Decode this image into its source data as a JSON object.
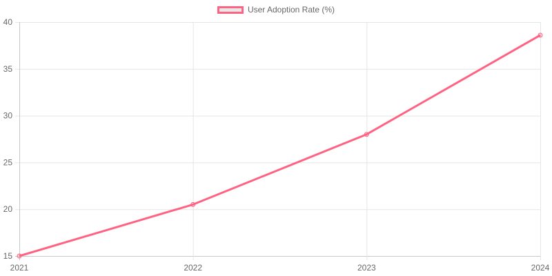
{
  "chart_data": {
    "type": "line",
    "title": "",
    "xlabel": "",
    "ylabel": "",
    "categories": [
      "2021",
      "2022",
      "2023",
      "2024"
    ],
    "series": [
      {
        "name": "User Adoption Rate (%)",
        "values": [
          15.0,
          20.5,
          28.0,
          38.6
        ],
        "color": "#ff6384"
      }
    ],
    "ylim": [
      15,
      40
    ],
    "yticks": [
      15,
      20,
      25,
      30,
      35,
      40
    ],
    "grid": true,
    "legend_position": "top"
  },
  "legend": {
    "label": "User Adoption Rate (%)",
    "color": "#ff6384"
  }
}
